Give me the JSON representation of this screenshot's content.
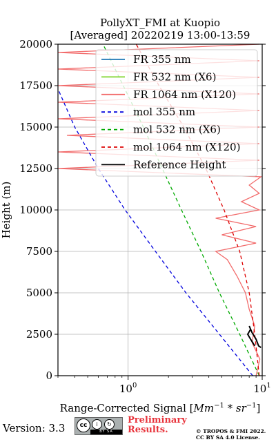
{
  "chart_data": {
    "type": "line",
    "title": "PollyXT_FMI at Kuopio",
    "subtitle": "[Averaged] 20220219 13:00-13:59",
    "xlabel": "Range-Corrected Signal [Mm⁻¹ * sr⁻¹]",
    "xlabel_parts": {
      "main": "Range-Corrected Signal [",
      "unit": "Mm",
      "exp1": "−1",
      "op": " * sr",
      "exp2": "−1",
      "close": "]"
    },
    "ylabel": "Height (m)",
    "x_scale": "log",
    "xlim": [
      0.3,
      10
    ],
    "ylim": [
      0,
      20000
    ],
    "x_ticks": [
      1,
      10
    ],
    "x_tick_labels": [
      {
        "base": "10",
        "exp": "0"
      },
      {
        "base": "10",
        "exp": "1"
      }
    ],
    "y_ticks": [
      0,
      2500,
      5000,
      7500,
      10000,
      12500,
      15000,
      17500,
      20000
    ],
    "y_tick_labels": [
      "0",
      "2500",
      "5000",
      "7500",
      "10000",
      "12500",
      "15000",
      "17500",
      "20000"
    ],
    "grid": true,
    "legend_position": "top-right",
    "series": [
      {
        "name": "FR 355 nm",
        "color": "#1f77b4",
        "style": "solid",
        "points": []
      },
      {
        "name": "FR 532 nm (X6)",
        "color": "#7fd42a",
        "style": "solid",
        "points": []
      },
      {
        "name": "FR 1064 nm (X120)",
        "color": "#f26b6b",
        "style": "solid",
        "points": [
          [
            9.0,
            0
          ],
          [
            9.6,
            1000
          ],
          [
            8.4,
            2000
          ],
          [
            8.8,
            3000
          ],
          [
            8.0,
            4000
          ],
          [
            7.5,
            5000
          ],
          [
            6.5,
            6000
          ],
          [
            5.5,
            7000
          ],
          [
            4.5,
            7500
          ],
          [
            9.0,
            8000
          ],
          [
            5.0,
            8500
          ],
          [
            9.0,
            9000
          ],
          [
            4.5,
            9500
          ],
          [
            9.5,
            10000
          ],
          [
            7.0,
            10500
          ],
          [
            9.5,
            11000
          ],
          [
            8.0,
            11500
          ],
          [
            9.8,
            12000
          ],
          [
            0.3,
            12500
          ],
          [
            9.5,
            13000
          ],
          [
            0.3,
            13500
          ],
          [
            9.5,
            14000
          ],
          [
            0.35,
            14500
          ],
          [
            9.5,
            15000
          ],
          [
            0.3,
            15500
          ],
          [
            9.5,
            16000
          ],
          [
            0.3,
            16500
          ],
          [
            9.5,
            17000
          ],
          [
            0.3,
            17500
          ],
          [
            9.5,
            18000
          ],
          [
            0.3,
            18500
          ],
          [
            9.5,
            19000
          ],
          [
            0.3,
            19500
          ],
          [
            9.5,
            20000
          ]
        ]
      },
      {
        "name": "mol 355 nm",
        "color": "#0000dd",
        "style": "dashed",
        "points": [
          [
            8.5,
            0
          ],
          [
            4.8,
            2500
          ],
          [
            2.7,
            5000
          ],
          [
            1.6,
            7500
          ],
          [
            0.95,
            10000
          ],
          [
            0.6,
            12500
          ],
          [
            0.4,
            15000
          ],
          [
            0.3,
            17300
          ]
        ]
      },
      {
        "name": "mol 532 nm (X6)",
        "color": "#00aa00",
        "style": "dashed",
        "points": [
          [
            9.5,
            0
          ],
          [
            6.8,
            2500
          ],
          [
            4.8,
            5000
          ],
          [
            3.5,
            7500
          ],
          [
            2.5,
            10000
          ],
          [
            1.8,
            12500
          ],
          [
            1.3,
            15000
          ],
          [
            0.92,
            17500
          ],
          [
            0.65,
            20000
          ]
        ]
      },
      {
        "name": "mol 1064 nm (X120)",
        "color": "#dd0000",
        "style": "dashed",
        "points": [
          [
            9.5,
            0
          ],
          [
            8.8,
            2500
          ],
          [
            8.0,
            5000
          ],
          [
            6.8,
            7500
          ],
          [
            5.2,
            10000
          ],
          [
            3.8,
            12500
          ],
          [
            2.6,
            15000
          ],
          [
            1.7,
            17500
          ],
          [
            1.15,
            20000
          ]
        ]
      },
      {
        "name": "Reference Height",
        "color": "#000000",
        "style": "solid",
        "points": [
          [
            8.8,
            1800
          ],
          [
            8.2,
            2200
          ],
          [
            7.8,
            2500
          ],
          [
            8.2,
            2800
          ],
          [
            8.0,
            3000
          ],
          [
            8.4,
            2600
          ],
          [
            9.0,
            2200
          ],
          [
            9.4,
            1800
          ],
          [
            9.8,
            1700
          ]
        ]
      }
    ]
  },
  "footer": {
    "version": "Version: 3.3",
    "cc_badge": {
      "cc": "cc",
      "by": "i",
      "sa": "↻",
      "strip": "BY  SA"
    },
    "preliminary_line1": "Preliminary",
    "preliminary_line2": "Results.",
    "copyright_line1": "© TROPOS & FMI 2022.",
    "copyright_line2": "CC BY SA 4.0 License."
  }
}
